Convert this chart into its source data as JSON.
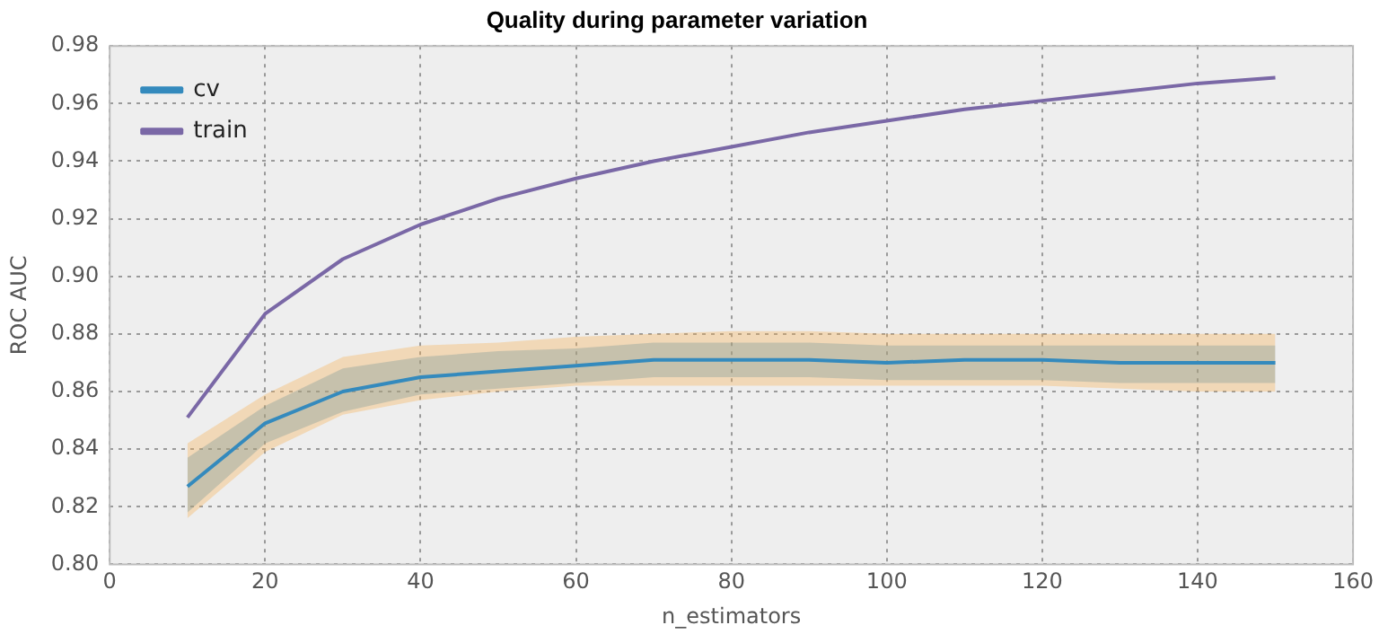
{
  "chart_data": {
    "type": "line",
    "title": "Quality during parameter variation",
    "xlabel": "n_estimators",
    "ylabel": "ROC AUC",
    "x": [
      10,
      20,
      30,
      40,
      50,
      60,
      70,
      80,
      90,
      100,
      110,
      120,
      130,
      140,
      150
    ],
    "series": [
      {
        "name": "cv",
        "color": "#348abd",
        "values": [
          0.827,
          0.849,
          0.86,
          0.865,
          0.867,
          0.869,
          0.871,
          0.871,
          0.871,
          0.87,
          0.871,
          0.871,
          0.87,
          0.87,
          0.87
        ],
        "lower": [
          0.818,
          0.842,
          0.853,
          0.859,
          0.861,
          0.863,
          0.865,
          0.865,
          0.865,
          0.864,
          0.864,
          0.864,
          0.863,
          0.863,
          0.863
        ],
        "upper": [
          0.837,
          0.855,
          0.868,
          0.872,
          0.874,
          0.875,
          0.877,
          0.877,
          0.877,
          0.876,
          0.876,
          0.876,
          0.876,
          0.876,
          0.876
        ]
      },
      {
        "name": "train",
        "color": "#7a68a6",
        "values": [
          0.851,
          0.887,
          0.906,
          0.918,
          0.927,
          0.934,
          0.94,
          0.945,
          0.95,
          0.954,
          0.958,
          0.961,
          0.964,
          0.967,
          0.969
        ]
      },
      {
        "color": "#f5b050",
        "values": [
          null,
          null,
          null,
          null,
          null,
          null,
          null,
          null,
          null,
          null,
          null,
          null,
          null,
          null,
          null
        ],
        "lower": [
          0.816,
          0.839,
          0.852,
          0.857,
          0.86,
          0.862,
          0.862,
          0.862,
          0.862,
          0.862,
          0.862,
          0.862,
          0.861,
          0.86,
          0.86
        ],
        "upper": [
          0.842,
          0.859,
          0.872,
          0.876,
          0.877,
          0.879,
          0.88,
          0.881,
          0.881,
          0.88,
          0.88,
          0.88,
          0.88,
          0.88,
          0.88
        ]
      }
    ],
    "xlim": [
      0,
      160
    ],
    "xticks": [
      0,
      20,
      40,
      60,
      80,
      100,
      120,
      140,
      160
    ],
    "ylim": [
      0.8,
      0.98
    ],
    "yticks": [
      {
        "value": 0.8,
        "label": "0.80"
      },
      {
        "value": 0.82,
        "label": "0.82"
      },
      {
        "value": 0.84,
        "label": "0.84"
      },
      {
        "value": 0.86,
        "label": "0.86"
      },
      {
        "value": 0.88,
        "label": "0.88"
      },
      {
        "value": 0.9,
        "label": "0.90"
      },
      {
        "value": 0.92,
        "label": "0.92"
      },
      {
        "value": 0.94,
        "label": "0.94"
      },
      {
        "value": 0.96,
        "label": "0.96"
      },
      {
        "value": 0.98,
        "label": "0.98"
      }
    ],
    "grid": true,
    "legend": "top left",
    "line_style": "solid",
    "marker": "none"
  }
}
